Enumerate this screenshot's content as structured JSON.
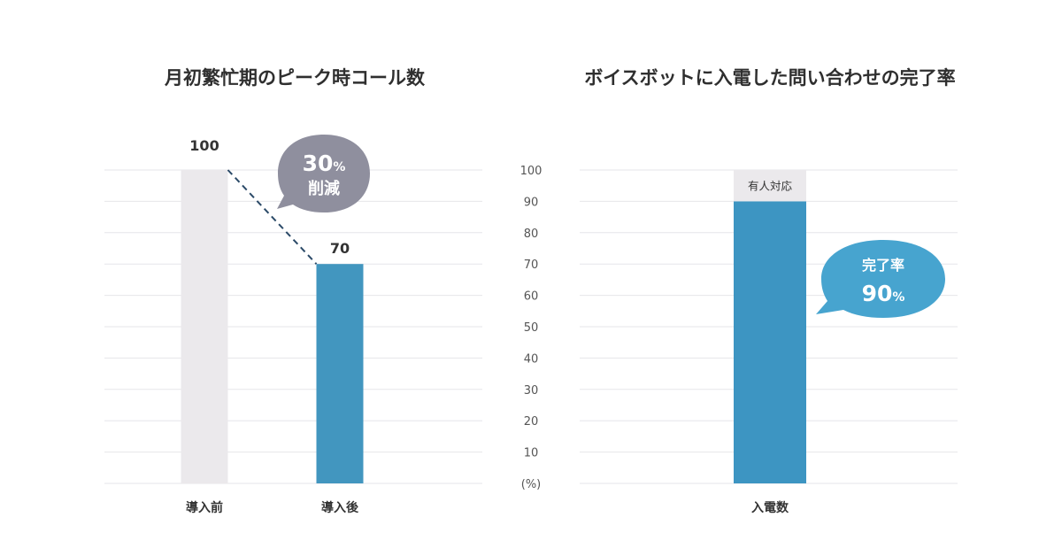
{
  "colors": {
    "before_bar": "#ebe9ec",
    "after_bar": "#4296bf",
    "completion_bar": "#3d95c2",
    "human_segment": "#ebe9ec",
    "grid": "#e6e6ea",
    "reduction_bubble": "#8f8f9e",
    "completion_bubble": "#47a4cf",
    "dashed_line": "#2b4a68"
  },
  "chart_data": [
    {
      "type": "bar",
      "title": "月初繁忙期のピーク時コール数",
      "categories": [
        "導入前",
        "導入後"
      ],
      "values": [
        100,
        70
      ],
      "value_labels": [
        "100",
        "70"
      ],
      "ylim": [
        0,
        100
      ],
      "gridlines": 10,
      "annotation": {
        "value": "30",
        "unit": "%",
        "label": "削減"
      }
    },
    {
      "type": "bar",
      "title": "ボイスボットに入電した問い合わせの完了率",
      "categories": [
        "入電数"
      ],
      "series": [
        {
          "name": "完了",
          "values": [
            90
          ]
        },
        {
          "name": "有人対応",
          "values": [
            10
          ]
        }
      ],
      "ylim": [
        0,
        100
      ],
      "yticks": [
        "100",
        "90",
        "80",
        "70",
        "60",
        "50",
        "40",
        "30",
        "20",
        "10"
      ],
      "y_unit_label": "(%)",
      "annotation": {
        "label": "完了率",
        "value": "90",
        "unit": "%"
      }
    }
  ]
}
